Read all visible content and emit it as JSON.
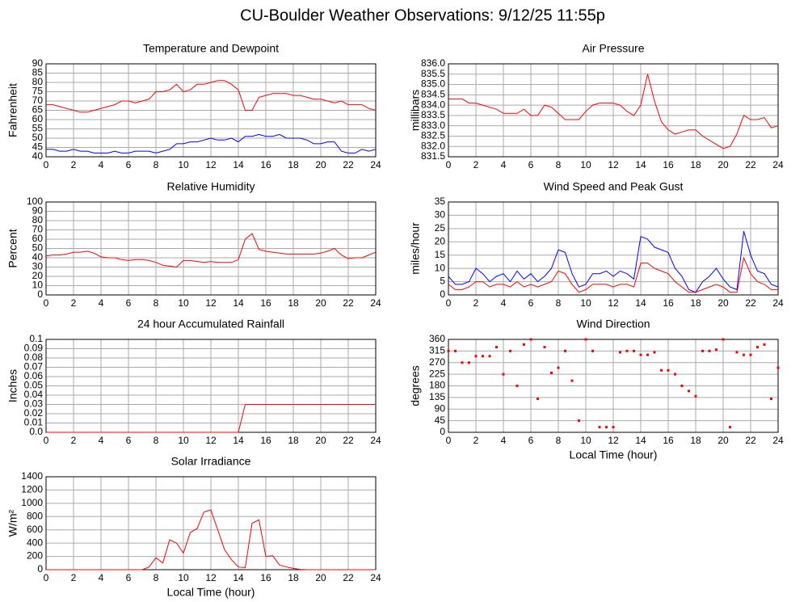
{
  "title": "CU-Boulder Weather Observations: 9/12/25 11:55p",
  "chart_data": [
    {
      "type": "line",
      "title": "Temperature and Dewpoint",
      "ylabel": "Fahrenheit",
      "xlim": [
        0,
        24
      ],
      "xticks": [
        0,
        2,
        4,
        6,
        8,
        10,
        12,
        14,
        16,
        18,
        20,
        22,
        24
      ],
      "ylim": [
        40,
        90
      ],
      "yticks": [
        40,
        45,
        50,
        55,
        60,
        65,
        70,
        75,
        80,
        85,
        90
      ],
      "grid": true,
      "x": [
        0,
        0.5,
        1,
        1.5,
        2,
        2.5,
        3,
        3.5,
        4,
        4.5,
        5,
        5.5,
        6,
        6.5,
        7,
        7.5,
        8,
        8.5,
        9,
        9.5,
        10,
        10.5,
        11,
        11.5,
        12,
        12.5,
        13,
        13.5,
        14,
        14.5,
        15,
        15.5,
        16,
        16.5,
        17,
        17.5,
        18,
        18.5,
        19,
        19.5,
        20,
        20.5,
        21,
        21.5,
        22,
        22.5,
        23,
        23.5,
        24
      ],
      "series": [
        {
          "color": "#ff0000",
          "values": [
            68,
            68,
            67,
            66,
            65,
            64,
            64,
            65,
            66,
            67,
            68,
            70,
            70,
            69,
            70,
            71,
            75,
            75,
            76,
            79,
            75,
            76,
            79,
            79,
            80,
            81,
            81,
            79,
            76,
            65,
            65,
            72,
            73,
            74,
            74,
            74,
            73,
            73,
            72,
            71,
            71,
            70,
            69,
            70,
            68,
            68,
            68,
            66,
            65
          ]
        },
        {
          "color": "#0000ff",
          "values": [
            44,
            44,
            43,
            43,
            44,
            43,
            43,
            42,
            42,
            42,
            43,
            42,
            42,
            43,
            43,
            43,
            42,
            43,
            44,
            47,
            47,
            48,
            48,
            49,
            50,
            49,
            49,
            50,
            48,
            51,
            51,
            52,
            51,
            51,
            52,
            50,
            50,
            50,
            49,
            47,
            47,
            48,
            48,
            43,
            42,
            42,
            44,
            43,
            44
          ]
        }
      ]
    },
    {
      "type": "line",
      "title": "Air Pressure",
      "ylabel": "millibars",
      "xlim": [
        0,
        24
      ],
      "xticks": [
        0,
        2,
        4,
        6,
        8,
        10,
        12,
        14,
        16,
        18,
        20,
        22,
        24
      ],
      "ylim": [
        831.5,
        836
      ],
      "yticks": [
        831.5,
        {
          "value": 832,
          "label": "832.0"
        },
        832.5,
        {
          "value": 833,
          "label": "833.0"
        },
        833.5,
        {
          "value": 834,
          "label": "834.0"
        },
        834.5,
        {
          "value": 835,
          "label": "835.0"
        },
        835.5,
        {
          "value": 836,
          "label": "836.0"
        }
      ],
      "grid": true,
      "x": [
        0,
        0.5,
        1,
        1.5,
        2,
        2.5,
        3,
        3.5,
        4,
        4.5,
        5,
        5.5,
        6,
        6.5,
        7,
        7.5,
        8,
        8.5,
        9,
        9.5,
        10,
        10.5,
        11,
        11.5,
        12,
        12.5,
        13,
        13.5,
        14,
        14.5,
        15,
        15.5,
        16,
        16.5,
        17,
        17.5,
        18,
        18.5,
        19,
        19.5,
        20,
        20.5,
        21,
        21.5,
        22,
        22.5,
        23,
        23.5,
        24
      ],
      "series": [
        {
          "color": "#ff0000",
          "values": [
            834.3,
            834.3,
            834.3,
            834.1,
            834.1,
            834.0,
            833.9,
            833.8,
            833.6,
            833.6,
            833.6,
            833.8,
            833.5,
            833.5,
            834.0,
            833.9,
            833.6,
            833.3,
            833.3,
            833.3,
            833.7,
            834.0,
            834.1,
            834.1,
            834.1,
            834.0,
            833.7,
            833.5,
            834.0,
            835.5,
            834.2,
            833.2,
            832.8,
            832.6,
            832.7,
            832.8,
            832.8,
            832.5,
            832.3,
            832.1,
            831.9,
            832.0,
            832.6,
            833.5,
            833.3,
            833.3,
            833.4,
            832.9,
            833.0
          ]
        }
      ]
    },
    {
      "type": "line",
      "title": "Relative Humidity",
      "ylabel": "Percent",
      "xlim": [
        0,
        24
      ],
      "xticks": [
        0,
        2,
        4,
        6,
        8,
        10,
        12,
        14,
        16,
        18,
        20,
        22,
        24
      ],
      "ylim": [
        0,
        100
      ],
      "yticks": [
        0,
        10,
        20,
        30,
        40,
        50,
        60,
        70,
        80,
        90,
        100
      ],
      "grid": true,
      "x": [
        0,
        0.5,
        1,
        1.5,
        2,
        2.5,
        3,
        3.5,
        4,
        4.5,
        5,
        5.5,
        6,
        6.5,
        7,
        7.5,
        8,
        8.5,
        9,
        9.5,
        10,
        10.5,
        11,
        11.5,
        12,
        12.5,
        13,
        13.5,
        14,
        14.5,
        15,
        15.5,
        16,
        16.5,
        17,
        17.5,
        18,
        18.5,
        19,
        19.5,
        20,
        20.5,
        21,
        21.5,
        22,
        22.5,
        23,
        23.5,
        24
      ],
      "series": [
        {
          "color": "#ff0000",
          "values": [
            42,
            43,
            43,
            44,
            46,
            46,
            47,
            45,
            41,
            40,
            40,
            38,
            37,
            38,
            38,
            37,
            35,
            32,
            31,
            30,
            37,
            37,
            36,
            35,
            36,
            35,
            35,
            35,
            38,
            60,
            66,
            49,
            47,
            46,
            45,
            44,
            44,
            44,
            44,
            44,
            45,
            47,
            50,
            43,
            39,
            40,
            40,
            43,
            46
          ]
        }
      ]
    },
    {
      "type": "line",
      "title": "Wind Speed and Peak Gust",
      "ylabel": "miles/hour",
      "xlim": [
        0,
        24
      ],
      "xticks": [
        0,
        2,
        4,
        6,
        8,
        10,
        12,
        14,
        16,
        18,
        20,
        22,
        24
      ],
      "ylim": [
        0,
        35
      ],
      "yticks": [
        0,
        5,
        10,
        15,
        20,
        25,
        30,
        35
      ],
      "grid": true,
      "x": [
        0,
        0.5,
        1,
        1.5,
        2,
        2.5,
        3,
        3.5,
        4,
        4.5,
        5,
        5.5,
        6,
        6.5,
        7,
        7.5,
        8,
        8.5,
        9,
        9.5,
        10,
        10.5,
        11,
        11.5,
        12,
        12.5,
        13,
        13.5,
        14,
        14.5,
        15,
        15.5,
        16,
        16.5,
        17,
        17.5,
        18,
        18.5,
        19,
        19.5,
        20,
        20.5,
        21,
        21.5,
        22,
        22.5,
        23,
        23.5,
        24
      ],
      "series": [
        {
          "color": "#0000ff",
          "values": [
            7,
            4,
            4,
            5,
            10,
            8,
            5,
            7,
            8,
            5,
            9,
            6,
            8,
            5,
            7,
            10,
            17,
            16,
            8,
            3,
            4,
            8,
            8,
            9,
            7,
            9,
            8,
            6,
            22,
            21,
            18,
            17,
            16,
            10,
            7,
            2,
            1,
            5,
            7,
            10,
            6,
            3,
            2,
            24,
            15,
            9,
            8,
            4,
            3
          ]
        },
        {
          "color": "#ff0000",
          "values": [
            4,
            2,
            2,
            3,
            5,
            5,
            3,
            4,
            4,
            3,
            5,
            3,
            4,
            3,
            4,
            5,
            9,
            8,
            4,
            1,
            2,
            4,
            4,
            4,
            3,
            4,
            4,
            3,
            12,
            12,
            10,
            9,
            8,
            5,
            3,
            1,
            1,
            2,
            3,
            4,
            3,
            1,
            1,
            14,
            8,
            5,
            4,
            2,
            2
          ]
        }
      ]
    },
    {
      "type": "line",
      "title": "24 hour Accumulated Rainfall",
      "ylabel": "Inches",
      "xlim": [
        0,
        24
      ],
      "xticks": [
        0,
        2,
        4,
        6,
        8,
        10,
        12,
        14,
        16,
        18,
        20,
        22,
        24
      ],
      "ylim": [
        0,
        0.1
      ],
      "yticks": [
        {
          "value": 0,
          "label": "0.0"
        },
        0.01,
        0.02,
        0.03,
        0.04,
        0.05,
        0.06,
        0.07,
        0.08,
        0.09,
        0.1
      ],
      "grid": true,
      "x": [
        0,
        0.5,
        1,
        1.5,
        2,
        2.5,
        3,
        3.5,
        4,
        4.5,
        5,
        5.5,
        6,
        6.5,
        7,
        7.5,
        8,
        8.5,
        9,
        9.5,
        10,
        10.5,
        11,
        11.5,
        12,
        12.5,
        13,
        13.5,
        14,
        14.5,
        15,
        15.5,
        16,
        16.5,
        17,
        17.5,
        18,
        18.5,
        19,
        19.5,
        20,
        20.5,
        21,
        21.5,
        22,
        22.5,
        23,
        23.5,
        24
      ],
      "series": [
        {
          "color": "#ff0000",
          "values": [
            0,
            0,
            0,
            0,
            0,
            0,
            0,
            0,
            0,
            0,
            0,
            0,
            0,
            0,
            0,
            0,
            0,
            0,
            0,
            0,
            0,
            0,
            0,
            0,
            0,
            0,
            0,
            0,
            0,
            0.03,
            0.03,
            0.03,
            0.03,
            0.03,
            0.03,
            0.03,
            0.03,
            0.03,
            0.03,
            0.03,
            0.03,
            0.03,
            0.03,
            0.03,
            0.03,
            0.03,
            0.03,
            0.03,
            0.03
          ]
        }
      ]
    },
    {
      "type": "scatter",
      "title": "Wind Direction",
      "ylabel": "degrees",
      "xlabel": "Local Time (hour)",
      "xlim": [
        0,
        24
      ],
      "xticks": [
        0,
        2,
        4,
        6,
        8,
        10,
        12,
        14,
        16,
        18,
        20,
        22,
        24
      ],
      "ylim": [
        0,
        360
      ],
      "yticks": [
        0,
        45,
        90,
        135,
        180,
        225,
        270,
        315,
        360
      ],
      "grid": true,
      "x": [
        0,
        0.5,
        1,
        1.5,
        2,
        2.5,
        3,
        3.5,
        4,
        4.5,
        5,
        5.5,
        6,
        6.5,
        7,
        7.5,
        8,
        8.5,
        9,
        9.5,
        10,
        10.5,
        11,
        11.5,
        12,
        12.5,
        13,
        13.5,
        14,
        14.5,
        15,
        15.5,
        16,
        16.5,
        17,
        17.5,
        18,
        18.5,
        19,
        19.5,
        20,
        20.5,
        21,
        21.5,
        22,
        22.5,
        23,
        23.5,
        24
      ],
      "series": [
        {
          "color": "#ff0000",
          "values": [
            315,
            315,
            270,
            270,
            295,
            295,
            295,
            330,
            225,
            315,
            180,
            340,
            360,
            130,
            330,
            230,
            250,
            315,
            200,
            45,
            360,
            315,
            20,
            20,
            20,
            310,
            315,
            315,
            300,
            300,
            310,
            240,
            240,
            225,
            180,
            160,
            140,
            315,
            315,
            320,
            360,
            20,
            310,
            300,
            300,
            330,
            340,
            130,
            250
          ]
        }
      ]
    },
    {
      "type": "line",
      "title": "Solar Irradiance",
      "ylabel": "W/m²",
      "xlabel": "Local Time (hour)",
      "xlim": [
        0,
        24
      ],
      "xticks": [
        0,
        2,
        4,
        6,
        8,
        10,
        12,
        14,
        16,
        18,
        20,
        22,
        24
      ],
      "ylim": [
        0,
        1400
      ],
      "yticks": [
        0,
        200,
        400,
        600,
        800,
        1000,
        1200,
        1400
      ],
      "grid": true,
      "x": [
        0,
        0.5,
        1,
        1.5,
        2,
        2.5,
        3,
        3.5,
        4,
        4.5,
        5,
        5.5,
        6,
        6.5,
        7,
        7.5,
        8,
        8.5,
        9,
        9.5,
        10,
        10.5,
        11,
        11.5,
        12,
        12.5,
        13,
        13.5,
        14,
        14.5,
        15,
        15.5,
        16,
        16.5,
        17,
        17.5,
        18,
        18.5,
        19,
        19.5,
        20,
        20.5,
        21,
        21.5,
        22,
        22.5,
        23,
        23.5,
        24
      ],
      "series": [
        {
          "color": "#ff0000",
          "values": [
            0,
            0,
            0,
            0,
            0,
            0,
            0,
            0,
            0,
            0,
            0,
            0,
            0,
            0,
            0,
            40,
            180,
            100,
            450,
            400,
            250,
            560,
            620,
            870,
            900,
            600,
            300,
            150,
            40,
            30,
            700,
            750,
            200,
            210,
            70,
            40,
            20,
            5,
            0,
            0,
            0,
            0,
            0,
            0,
            0,
            0,
            0,
            0,
            0
          ]
        }
      ]
    }
  ]
}
